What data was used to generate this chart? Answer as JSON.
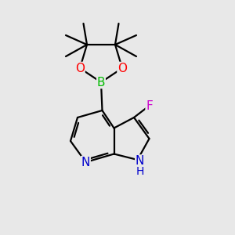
{
  "bg_color": "#e8e8e8",
  "bond_color": "#000000",
  "atom_colors": {
    "N": "#0000cc",
    "O": "#ff0000",
    "B": "#00bb00",
    "F": "#cc00cc",
    "C": "#000000"
  },
  "figsize": [
    3.0,
    3.0
  ],
  "dpi": 100,
  "bond_lw": 1.6,
  "font_size": 10
}
